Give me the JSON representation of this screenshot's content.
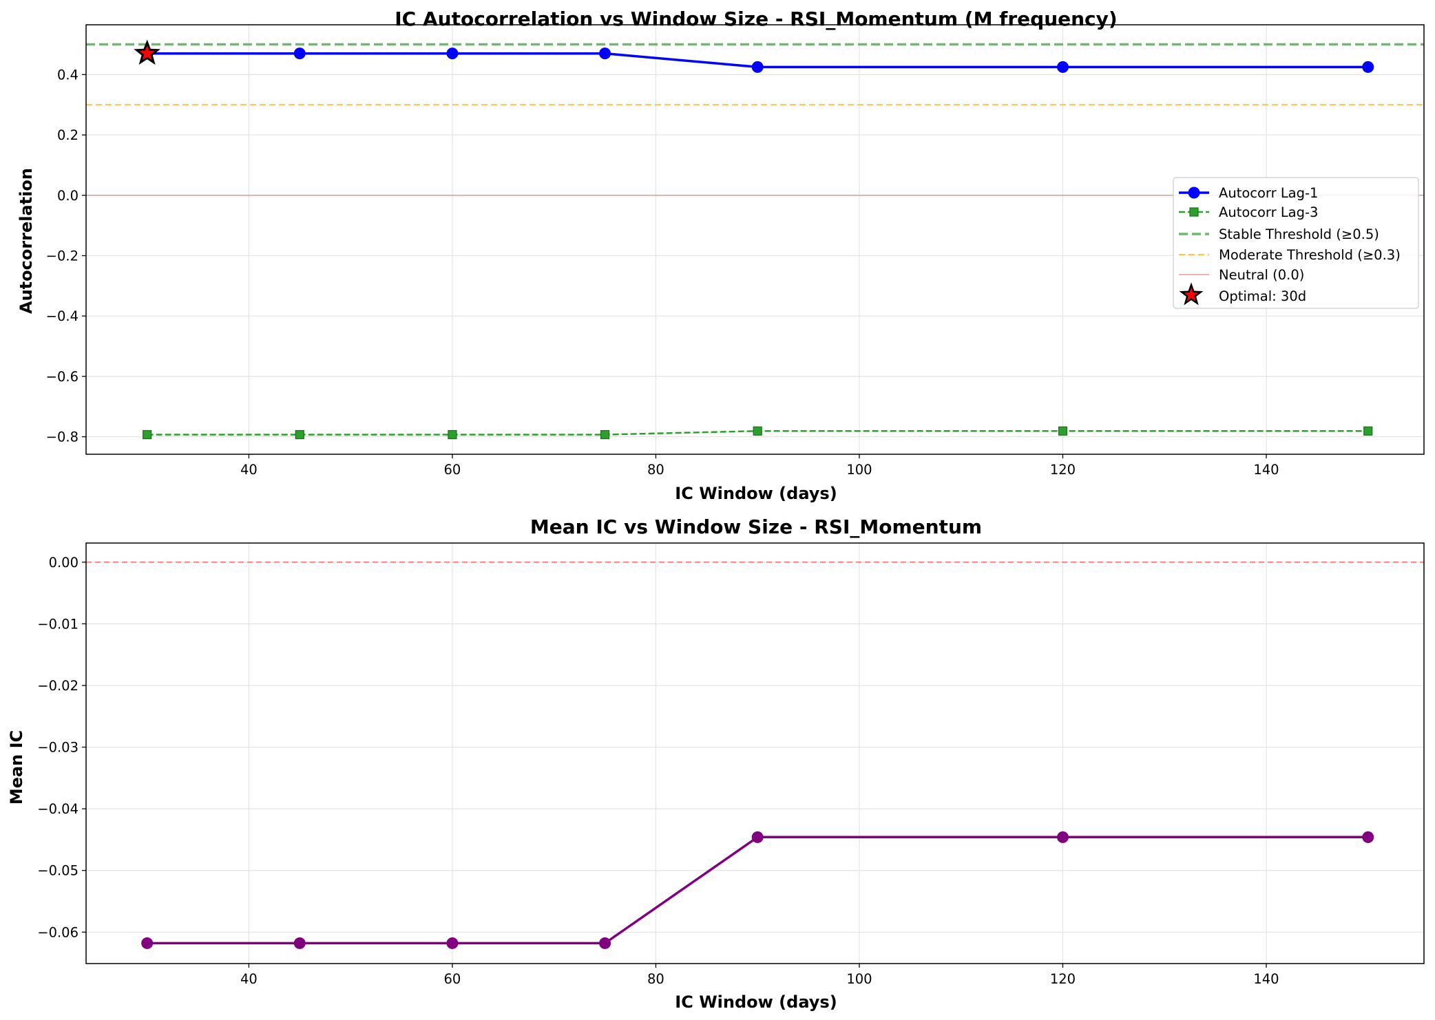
{
  "chart_data": [
    {
      "type": "line",
      "title": "IC Autocorrelation vs Window Size - RSI_Momentum (M frequency)",
      "xlabel": "IC Window (days)",
      "ylabel": "Autocorrelation",
      "xlim": [
        24,
        155.5
      ],
      "ylim": [
        -0.858,
        0.565
      ],
      "x_ticks": [
        40,
        60,
        80,
        100,
        120,
        140
      ],
      "y_ticks": [
        -0.8,
        -0.6,
        -0.4,
        -0.2,
        0.0,
        0.2,
        0.4
      ],
      "y_tick_labels": [
        "−0.8",
        "−0.6",
        "−0.4",
        "−0.2",
        "0.0",
        "0.2",
        "0.4"
      ],
      "grid": true,
      "legend_position": "center-right",
      "x": [
        30,
        45,
        60,
        75,
        90,
        120,
        150
      ],
      "series": [
        {
          "name": "Autocorr Lag-1",
          "values": [
            0.47,
            0.47,
            0.47,
            0.47,
            0.425,
            0.425,
            0.425
          ],
          "color": "#0000ff",
          "style": "solid",
          "marker": "circle"
        },
        {
          "name": "Autocorr Lag-3",
          "values": [
            -0.793,
            -0.793,
            -0.793,
            -0.793,
            -0.781,
            -0.781,
            -0.781
          ],
          "color": "#2ca02c",
          "style": "dashed",
          "marker": "square"
        }
      ],
      "reference_lines": [
        {
          "name": "Stable Threshold (≥0.5)",
          "y": 0.5,
          "color": "#6fb96f",
          "style": "dashed-wide"
        },
        {
          "name": "Moderate Threshold (≥0.3)",
          "y": 0.3,
          "color": "#ffc44d",
          "style": "dashed"
        },
        {
          "name": "Neutral (0.0)",
          "y": 0.0,
          "color": "#f08080",
          "style": "solid-thin"
        }
      ],
      "highlight": {
        "name": "Optimal: 30d",
        "x": 30,
        "y": 0.47,
        "color": "#ff0000",
        "marker": "star"
      }
    },
    {
      "type": "line",
      "title": "Mean IC vs Window Size - RSI_Momentum",
      "xlabel": "IC Window (days)",
      "ylabel": "Mean IC",
      "xlim": [
        24,
        155.5
      ],
      "ylim": [
        -0.0651,
        0.0031
      ],
      "x_ticks": [
        40,
        60,
        80,
        100,
        120,
        140
      ],
      "y_ticks": [
        -0.06,
        -0.05,
        -0.04,
        -0.03,
        -0.02,
        -0.01,
        0.0
      ],
      "y_tick_labels": [
        "−0.06",
        "−0.05",
        "−0.04",
        "−0.03",
        "−0.02",
        "−0.01",
        "0.00"
      ],
      "grid": true,
      "x": [
        30,
        45,
        60,
        75,
        90,
        120,
        150
      ],
      "series": [
        {
          "values": [
            -0.0618,
            -0.0618,
            -0.0618,
            -0.0618,
            -0.0446,
            -0.0446,
            -0.0446
          ],
          "color": "#800080",
          "style": "solid",
          "marker": "circle"
        }
      ],
      "reference_lines": [
        {
          "y": 0.0,
          "color": "#ff6666",
          "style": "dashed-thin"
        }
      ]
    }
  ]
}
